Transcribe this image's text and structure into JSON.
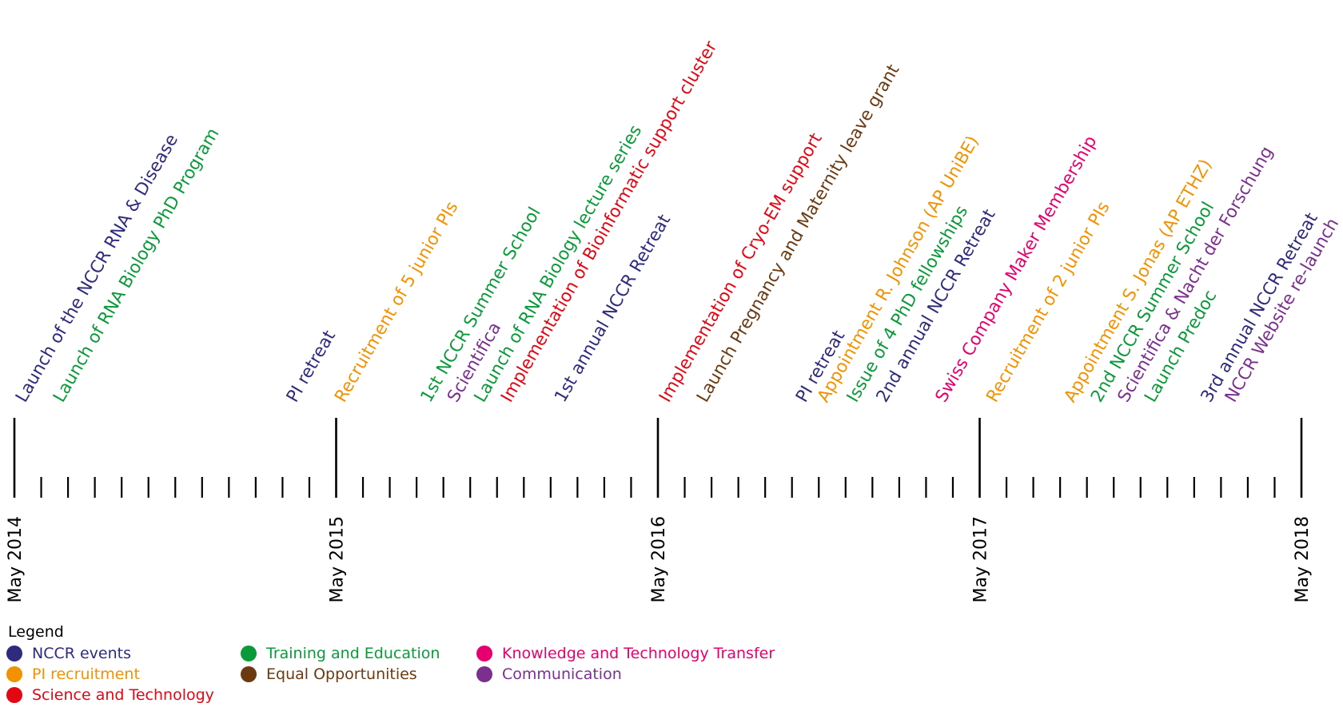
{
  "colors": {
    "nccr": "#2e2a7c",
    "pi": "#f39200",
    "science": "#e30613",
    "training": "#0a9a3a",
    "equal": "#6b3a10",
    "ktt": "#e6006f",
    "communication": "#7b2f8e"
  },
  "timeline": {
    "start_label": "May 2014",
    "major_ticks": [
      "May 2014",
      "May 2015",
      "May 2016",
      "May 2017",
      "May 2018"
    ],
    "months_total": 48,
    "events": [
      {
        "month": 0.1,
        "label": "Launch of the NCCR RNA & Disease",
        "category": "nccr"
      },
      {
        "month": 1.5,
        "label": "Launch of RNA Biology PhD Program",
        "category": "training"
      },
      {
        "month": 10.2,
        "label": "PI retreat",
        "category": "nccr"
      },
      {
        "month": 12.0,
        "label": "Recruitment of 5 junior PIs",
        "category": "pi"
      },
      {
        "month": 15.2,
        "label": "1st NCCR Summer School",
        "category": "training"
      },
      {
        "month": 16.2,
        "label": "Scientifica",
        "category": "communication"
      },
      {
        "month": 17.2,
        "label": "Launch of RNA Biology lecture series",
        "category": "training"
      },
      {
        "month": 18.2,
        "label": "Implementation of Bioinformatic support cluster",
        "category": "science"
      },
      {
        "month": 20.2,
        "label": "1st annual NCCR Retreat",
        "category": "nccr"
      },
      {
        "month": 24.1,
        "label": "Implementation of Cryo-EM support",
        "category": "science"
      },
      {
        "month": 25.5,
        "label": "Launch Pregnancy and Maternity leave grant",
        "category": "equal"
      },
      {
        "month": 29.2,
        "label": "PI retreat",
        "category": "nccr"
      },
      {
        "month": 30.0,
        "label": "Appointment R. Johnson (AP UniBE)",
        "category": "pi"
      },
      {
        "month": 31.1,
        "label": "Issue of 4 PhD fellowships",
        "category": "training"
      },
      {
        "month": 32.2,
        "label": "2nd annual NCCR Retreat",
        "category": "nccr"
      },
      {
        "month": 34.4,
        "label": "Swiss Company Maker Membership",
        "category": "ktt"
      },
      {
        "month": 36.3,
        "label": "Recruitment of 2 junior PIs",
        "category": "pi"
      },
      {
        "month": 39.2,
        "label": "Appointment S. Jonas (AP ETHZ)",
        "category": "pi"
      },
      {
        "month": 40.2,
        "label": "2nd NCCR Summer School",
        "category": "training"
      },
      {
        "month": 41.2,
        "label": "Scientifica & Nacht der Forschung",
        "category": "communication"
      },
      {
        "month": 42.2,
        "label": "Launch Predoc",
        "category": "training"
      },
      {
        "month": 44.3,
        "label": "3rd annual NCCR Retreat",
        "category": "nccr"
      },
      {
        "month": 45.2,
        "label": "NCCR Website re-launch",
        "category": "communication"
      }
    ]
  },
  "legend": {
    "title": "Legend",
    "items": [
      {
        "label": "NCCR events",
        "category": "nccr"
      },
      {
        "label": "PI recruitment",
        "category": "pi"
      },
      {
        "label": "Science and Technology",
        "category": "science"
      },
      {
        "label": "Training and Education",
        "category": "training"
      },
      {
        "label": "Equal Opportunities",
        "category": "equal"
      },
      {
        "label": "Knowledge and Technology Transfer",
        "category": "ktt"
      },
      {
        "label": "Communication",
        "category": "communication"
      }
    ]
  }
}
